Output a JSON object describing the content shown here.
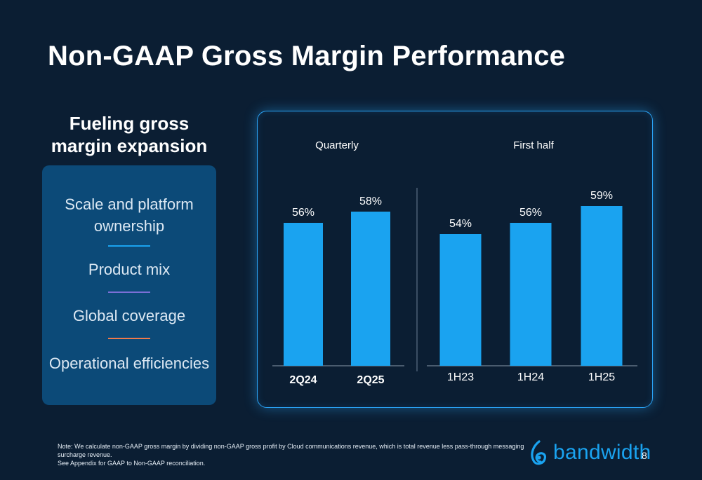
{
  "title": "Non-GAAP Gross Margin Performance",
  "subhead": "Fueling gross margin expansion",
  "drivers": [
    "Scale and platform ownership",
    "Product mix",
    "Global coverage",
    "Operational efficiencies"
  ],
  "divider_colors": [
    "#1aa3f0",
    "#7b6fd6",
    "#f07a4a"
  ],
  "colors": {
    "bar": "#1aa3f0",
    "background": "#0b1e33",
    "panel_border": "#2aa3f5",
    "logo": "#1aa3f0"
  },
  "chart_data": [
    {
      "type": "bar",
      "title": "Quarterly",
      "categories": [
        "2Q24",
        "2Q25"
      ],
      "values": [
        56,
        58
      ],
      "labels": [
        "56%",
        "58%"
      ]
    },
    {
      "type": "bar",
      "title": "First half",
      "categories": [
        "1H23",
        "1H24",
        "1H25"
      ],
      "values": [
        54,
        56,
        59
      ],
      "labels": [
        "54%",
        "56%",
        "59%"
      ]
    }
  ],
  "note": {
    "line1": "Note: We calculate non-GAAP gross margin by dividing non-GAAP gross profit by Cloud communications revenue, which is total revenue less pass-through messaging surcharge revenue.",
    "line2": "See Appendix for GAAP to Non-GAAP reconciliation."
  },
  "logo": {
    "text": "bandwidth",
    "icon": "bandwidth-logo-icon"
  },
  "page_number": "8"
}
